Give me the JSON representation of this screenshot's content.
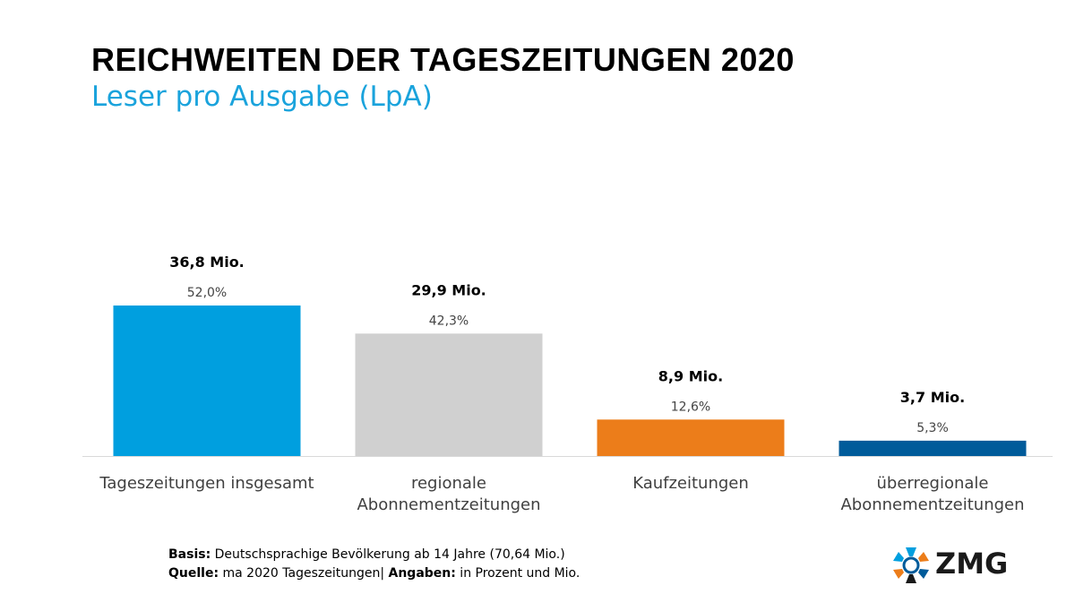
{
  "header": {
    "title": "REICHWEITEN DER TAGESZEITUNGEN 2020",
    "subtitle": "Leser pro Ausgabe (LpA)"
  },
  "chart_data": {
    "type": "bar",
    "title": "REICHWEITEN DER TAGESZEITUNGEN 2020",
    "subtitle": "Leser pro Ausgabe (LpA)",
    "categories": [
      [
        "Tageszeitungen insgesamt"
      ],
      [
        "regionale",
        "Abonnementzeitungen"
      ],
      [
        "Kaufzeitungen"
      ],
      [
        "überregionale",
        "Abonnementzeitungen"
      ]
    ],
    "values": [
      52.0,
      42.3,
      12.6,
      5.3
    ],
    "value_labels": [
      "52,0%",
      "42,3%",
      "12,6%",
      "5,3%"
    ],
    "absolute_labels": [
      "36,8 Mio.",
      "29,9 Mio.",
      "8,9 Mio.",
      "3,7 Mio."
    ],
    "colors": [
      "#009fdf",
      "#d0d0d0",
      "#ec7d1a",
      "#005b9a"
    ],
    "ylim": [
      0,
      52.0
    ],
    "grid": false,
    "legend": "none"
  },
  "footer": {
    "basis_label": "Basis:",
    "basis_text": " Deutschsprachige Bevölkerung ab 14 Jahre (70,64 Mio.)",
    "source_label": "Quelle:",
    "source_text": " ma 2020 Tageszeitungen| ",
    "units_label": "Angaben:",
    "units_text": " in Prozent und Mio."
  },
  "logo": {
    "text": "ZMG",
    "icon": "zmg-ring-logo-icon"
  }
}
